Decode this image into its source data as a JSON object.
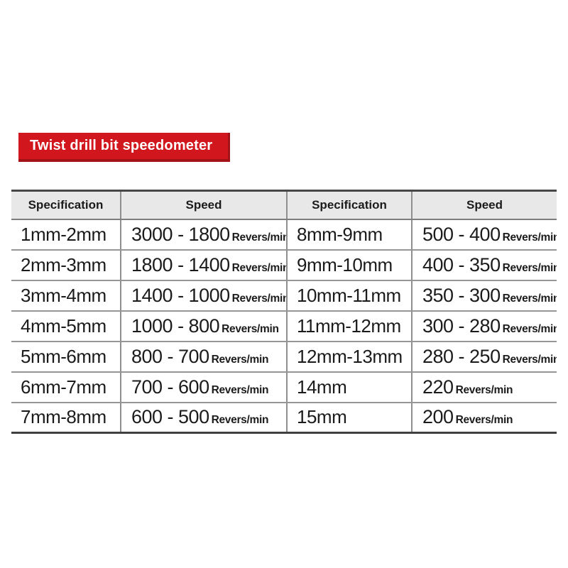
{
  "banner": {
    "label": "Twist drill bit speedometer"
  },
  "colors": {
    "banner_bg": "#d2161e",
    "banner_shadow": "#a31217",
    "banner_text": "#ffffff",
    "header_bg": "#e9e8e8",
    "table_outer_border": "#474747",
    "table_inner_border": "#8f8f8f",
    "text": "#1b1b1b"
  },
  "table": {
    "headers": [
      "Specification",
      "Speed",
      "Specification",
      "Speed"
    ],
    "unit": "Revers/min",
    "rows": [
      {
        "spec_left": "1mm-2mm",
        "speed_left": "3000 - 1800",
        "spec_right": "8mm-9mm",
        "speed_right": "500 - 400"
      },
      {
        "spec_left": "2mm-3mm",
        "speed_left": "1800 - 1400",
        "spec_right": "9mm-10mm",
        "speed_right": "400 - 350"
      },
      {
        "spec_left": "3mm-4mm",
        "speed_left": "1400 - 1000",
        "spec_right": "10mm-11mm",
        "speed_right": "350 - 300"
      },
      {
        "spec_left": "4mm-5mm",
        "speed_left": "1000 - 800",
        "spec_right": "11mm-12mm",
        "speed_right": "300 - 280"
      },
      {
        "spec_left": "5mm-6mm",
        "speed_left": "800 - 700",
        "spec_right": "12mm-13mm",
        "speed_right": "280 - 250"
      },
      {
        "spec_left": "6mm-7mm",
        "speed_left": "700 - 600",
        "spec_right": "14mm",
        "speed_right": "220"
      },
      {
        "spec_left": "7mm-8mm",
        "speed_left": "600 - 500",
        "spec_right": "15mm",
        "speed_right": "200"
      }
    ]
  }
}
